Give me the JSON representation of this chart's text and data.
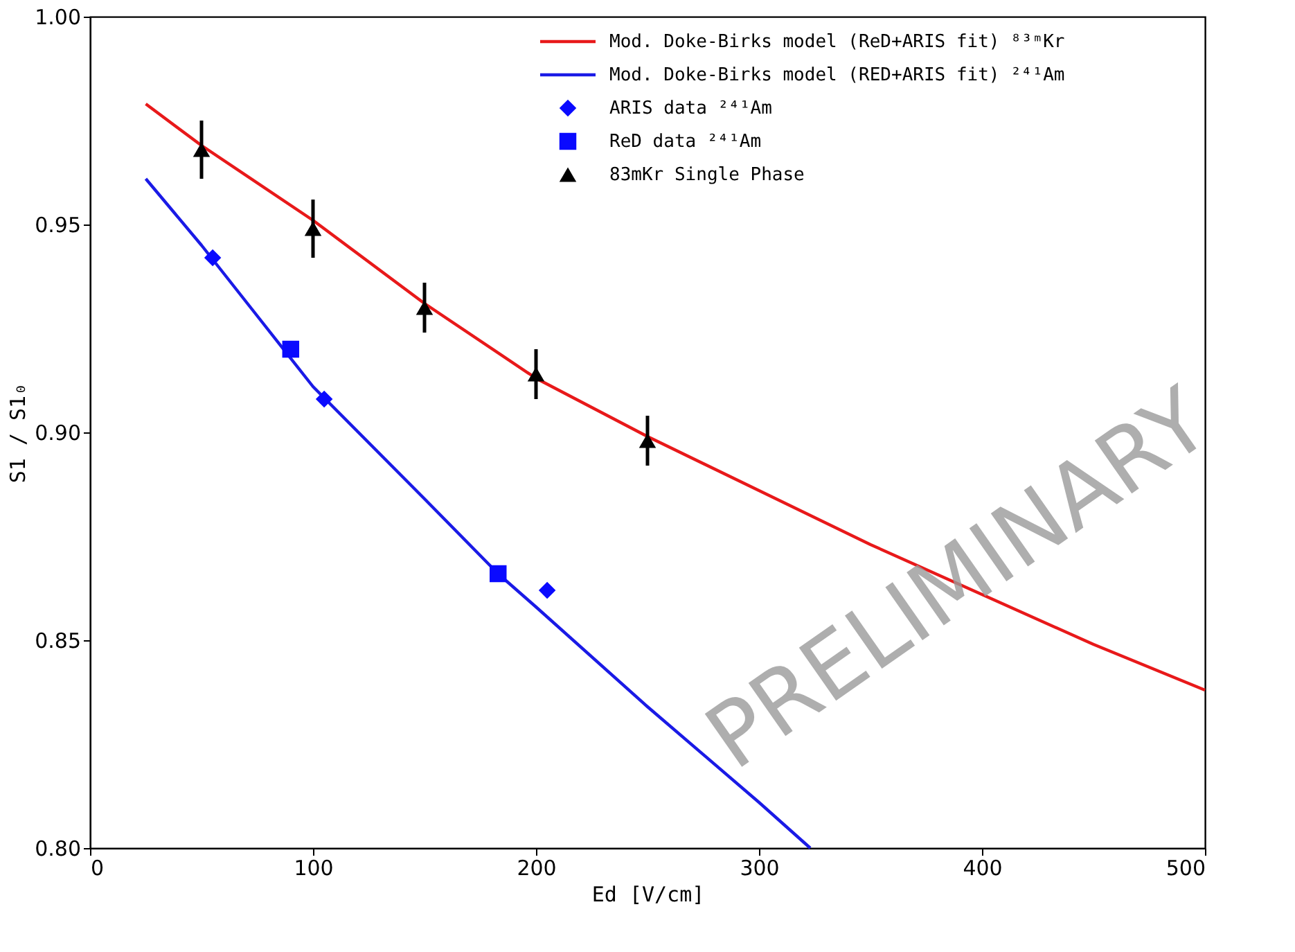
{
  "chart_data": {
    "type": "line",
    "xlabel": "Ed [V/cm]",
    "ylabel": "S1 / S1₀",
    "xlim": [
      0,
      500
    ],
    "ylim": [
      0.8,
      1.0
    ],
    "xticks": [
      0,
      100,
      200,
      300,
      400,
      500
    ],
    "yticks": [
      {
        "value": 0.8,
        "label": "0.80"
      },
      {
        "value": 0.85,
        "label": "0.85"
      },
      {
        "value": 0.9,
        "label": "0.90"
      },
      {
        "value": 0.95,
        "label": "0.95"
      },
      {
        "value": 1.0,
        "label": "1.00"
      }
    ],
    "grid": false,
    "legend": "top right",
    "series": [
      {
        "name": "Mod. Doke-Birks model (ReD+ARIS fit) ⁸³ᵐKr",
        "color": "#e8191a",
        "marker": "none",
        "x": [
          25,
          50,
          100,
          150,
          200,
          250,
          300,
          350,
          400,
          450,
          500
        ],
        "values": [
          0.979,
          0.969,
          0.951,
          0.931,
          0.913,
          0.899,
          0.886,
          0.873,
          0.861,
          0.849,
          0.838
        ]
      },
      {
        "name": "Mod. Doke-Birks model (RED+ARIS fit) ²⁴¹Am",
        "color": "#1a1ae6",
        "marker": "none",
        "x": [
          25,
          50,
          75,
          100,
          150,
          183,
          200,
          250,
          300,
          323
        ],
        "values": [
          0.961,
          0.945,
          0.928,
          0.911,
          0.884,
          0.866,
          0.858,
          0.834,
          0.811,
          0.8
        ]
      },
      {
        "name": "ARIS data ²⁴¹Am",
        "type": "scatter",
        "color": "#0a0aff",
        "marker": "diamond",
        "x": [
          55,
          105,
          205
        ],
        "values": [
          0.942,
          0.908,
          0.862
        ]
      },
      {
        "name": "ReD data ²⁴¹Am",
        "type": "scatter",
        "color": "#0a0aff",
        "marker": "square",
        "x": [
          90,
          183
        ],
        "values": [
          0.92,
          0.866
        ]
      },
      {
        "name": "83mKr Single Phase",
        "type": "scatter",
        "color": "#000000",
        "marker": "triangle",
        "x": [
          50,
          100,
          150,
          200,
          250
        ],
        "values": [
          0.968,
          0.949,
          0.93,
          0.914,
          0.898
        ],
        "errors": [
          0.007,
          0.007,
          0.006,
          0.006,
          0.006
        ]
      }
    ],
    "annotations": [
      "PRELIMINARY"
    ]
  }
}
